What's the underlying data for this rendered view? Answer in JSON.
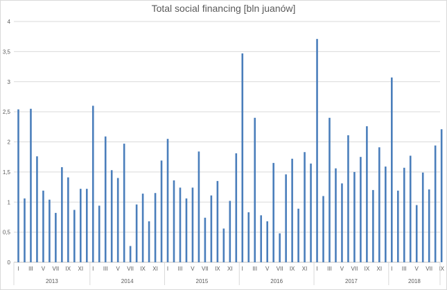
{
  "chart_data": {
    "type": "bar",
    "title": "Total social financing [bln juanów]",
    "xlabel": "",
    "ylabel": "",
    "ylim": [
      0,
      4
    ],
    "y_ticks": [
      "0",
      "0,5",
      "1",
      "1,5",
      "2",
      "2,5",
      "3",
      "3,5",
      "4"
    ],
    "y_tick_values": [
      0,
      0.5,
      1,
      1.5,
      2,
      2.5,
      3,
      3.5,
      4
    ],
    "grid": true,
    "color": "#4a7ebb",
    "month_tick_labels": [
      "I",
      "III",
      "V",
      "VII",
      "IX",
      "XI"
    ],
    "years": [
      "2013",
      "2014",
      "2015",
      "2016",
      "2017",
      "2018"
    ],
    "values": [
      2.54,
      1.06,
      2.55,
      1.76,
      1.19,
      1.04,
      0.82,
      1.58,
      1.41,
      0.87,
      1.22,
      1.22,
      2.6,
      0.94,
      2.09,
      1.53,
      1.4,
      1.97,
      0.27,
      0.96,
      1.14,
      0.68,
      1.15,
      1.69,
      2.05,
      1.36,
      1.24,
      1.06,
      1.24,
      1.84,
      0.74,
      1.11,
      1.35,
      0.56,
      1.02,
      1.81,
      3.47,
      0.83,
      2.4,
      0.78,
      0.68,
      1.65,
      0.48,
      1.46,
      1.72,
      0.89,
      1.83,
      1.64,
      3.71,
      1.1,
      2.4,
      1.56,
      1.31,
      2.11,
      1.5,
      1.75,
      2.26,
      1.2,
      1.91,
      1.59,
      3.07,
      1.19,
      1.57,
      1.77,
      0.95,
      1.49,
      1.21,
      1.94,
      2.21
    ]
  }
}
